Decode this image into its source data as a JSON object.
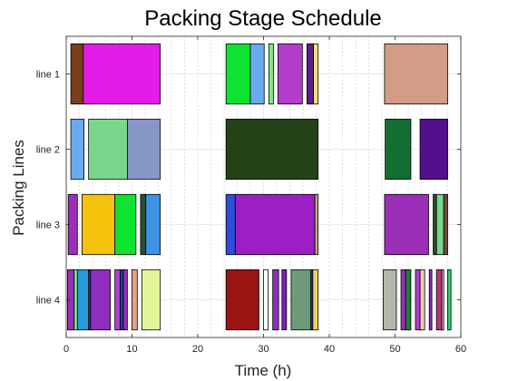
{
  "chart_data": {
    "type": "gantt",
    "title": "Packing Stage Schedule",
    "xlabel": "Time (h)",
    "ylabel": "Packing Lines",
    "xlim": [
      0,
      60
    ],
    "xticks": [
      0,
      10,
      20,
      30,
      40,
      50,
      60
    ],
    "grid": {
      "vertical": true,
      "minor_vertical_step": 2,
      "horizontal": true
    },
    "lines": [
      {
        "name": "line 1",
        "tasks": [
          {
            "start": 0.7,
            "end": 2.6,
            "color": "#7a3d1e"
          },
          {
            "start": 2.6,
            "end": 14.3,
            "color": "#e21de8"
          },
          {
            "start": 24.3,
            "end": 28.0,
            "color": "#0ee332"
          },
          {
            "start": 28.0,
            "end": 30.1,
            "color": "#6aaaf0"
          },
          {
            "start": 30.8,
            "end": 31.5,
            "color": "#7ee889"
          },
          {
            "start": 32.2,
            "end": 35.9,
            "color": "#b33dcb"
          },
          {
            "start": 36.6,
            "end": 37.6,
            "color": "#5a1f8a"
          },
          {
            "start": 37.6,
            "end": 38.3,
            "color": "#f4dc7a"
          },
          {
            "start": 48.4,
            "end": 58.0,
            "color": "#d29c86"
          }
        ]
      },
      {
        "name": "line 2",
        "tasks": [
          {
            "start": 0.7,
            "end": 2.7,
            "color": "#6aaaf0"
          },
          {
            "start": 3.4,
            "end": 9.3,
            "color": "#7ad68a"
          },
          {
            "start": 9.3,
            "end": 14.3,
            "color": "#8796c6"
          },
          {
            "start": 24.3,
            "end": 38.3,
            "color": "#244218"
          },
          {
            "start": 48.5,
            "end": 52.4,
            "color": "#146e32"
          },
          {
            "start": 53.8,
            "end": 58.0,
            "color": "#52108c"
          }
        ]
      },
      {
        "name": "line 3",
        "tasks": [
          {
            "start": 0.3,
            "end": 1.7,
            "color": "#9b2fb8"
          },
          {
            "start": 2.4,
            "end": 7.4,
            "color": "#f5c20c"
          },
          {
            "start": 7.4,
            "end": 10.6,
            "color": "#0ee332"
          },
          {
            "start": 11.3,
            "end": 12.1,
            "color": "#2d4e2d"
          },
          {
            "start": 12.1,
            "end": 14.3,
            "color": "#3d93e4"
          },
          {
            "start": 24.3,
            "end": 25.7,
            "color": "#2b4fd8"
          },
          {
            "start": 25.7,
            "end": 37.8,
            "color": "#9b1fc4"
          },
          {
            "start": 37.8,
            "end": 38.3,
            "color": "#c7a07a"
          },
          {
            "start": 48.4,
            "end": 55.1,
            "color": "#9b2fb8"
          },
          {
            "start": 55.8,
            "end": 56.3,
            "color": "#2d4e2d"
          },
          {
            "start": 56.3,
            "end": 57.4,
            "color": "#7ad68a"
          },
          {
            "start": 57.4,
            "end": 58.0,
            "color": "#6b4a3a"
          }
        ]
      },
      {
        "name": "line 4",
        "tasks": [
          {
            "start": 0.2,
            "end": 1.2,
            "color": "#9b2fb8"
          },
          {
            "start": 1.2,
            "end": 1.7,
            "color": "#7ee889"
          },
          {
            "start": 1.7,
            "end": 3.4,
            "color": "#2a9be0"
          },
          {
            "start": 3.4,
            "end": 3.7,
            "color": "#1a3fa0"
          },
          {
            "start": 3.7,
            "end": 6.7,
            "color": "#8e2dc0"
          },
          {
            "start": 7.4,
            "end": 8.2,
            "color": "#b33dcb"
          },
          {
            "start": 8.2,
            "end": 8.7,
            "color": "#1a3fa0"
          },
          {
            "start": 8.7,
            "end": 9.3,
            "color": "#9b2fb8"
          },
          {
            "start": 10.0,
            "end": 10.8,
            "color": "#ec9e8a"
          },
          {
            "start": 11.5,
            "end": 14.3,
            "color": "#e2f59a"
          },
          {
            "start": 24.3,
            "end": 29.3,
            "color": "#9a1414"
          },
          {
            "start": 30.0,
            "end": 30.7,
            "color": "#ffffff"
          },
          {
            "start": 31.4,
            "end": 32.3,
            "color": "#8e2dc0"
          },
          {
            "start": 32.8,
            "end": 33.5,
            "color": "#7a22a8"
          },
          {
            "start": 34.2,
            "end": 37.2,
            "color": "#6e9a7a"
          },
          {
            "start": 37.2,
            "end": 37.5,
            "color": "#1a3fa0"
          },
          {
            "start": 37.5,
            "end": 38.3,
            "color": "#f0d060"
          },
          {
            "start": 48.2,
            "end": 50.2,
            "color": "#b2b8a8"
          },
          {
            "start": 50.9,
            "end": 51.6,
            "color": "#9b2fb8"
          },
          {
            "start": 51.6,
            "end": 52.4,
            "color": "#1f7a3a"
          },
          {
            "start": 53.1,
            "end": 53.8,
            "color": "#b33dcb"
          },
          {
            "start": 53.8,
            "end": 54.5,
            "color": "#f0c7c0"
          },
          {
            "start": 55.2,
            "end": 55.6,
            "color": "#8e2dc0"
          },
          {
            "start": 56.3,
            "end": 57.1,
            "color": "#b03a7a"
          },
          {
            "start": 57.1,
            "end": 57.4,
            "color": "#f5a0a0"
          },
          {
            "start": 58.0,
            "end": 58.5,
            "color": "#2ecc71"
          }
        ]
      }
    ]
  }
}
